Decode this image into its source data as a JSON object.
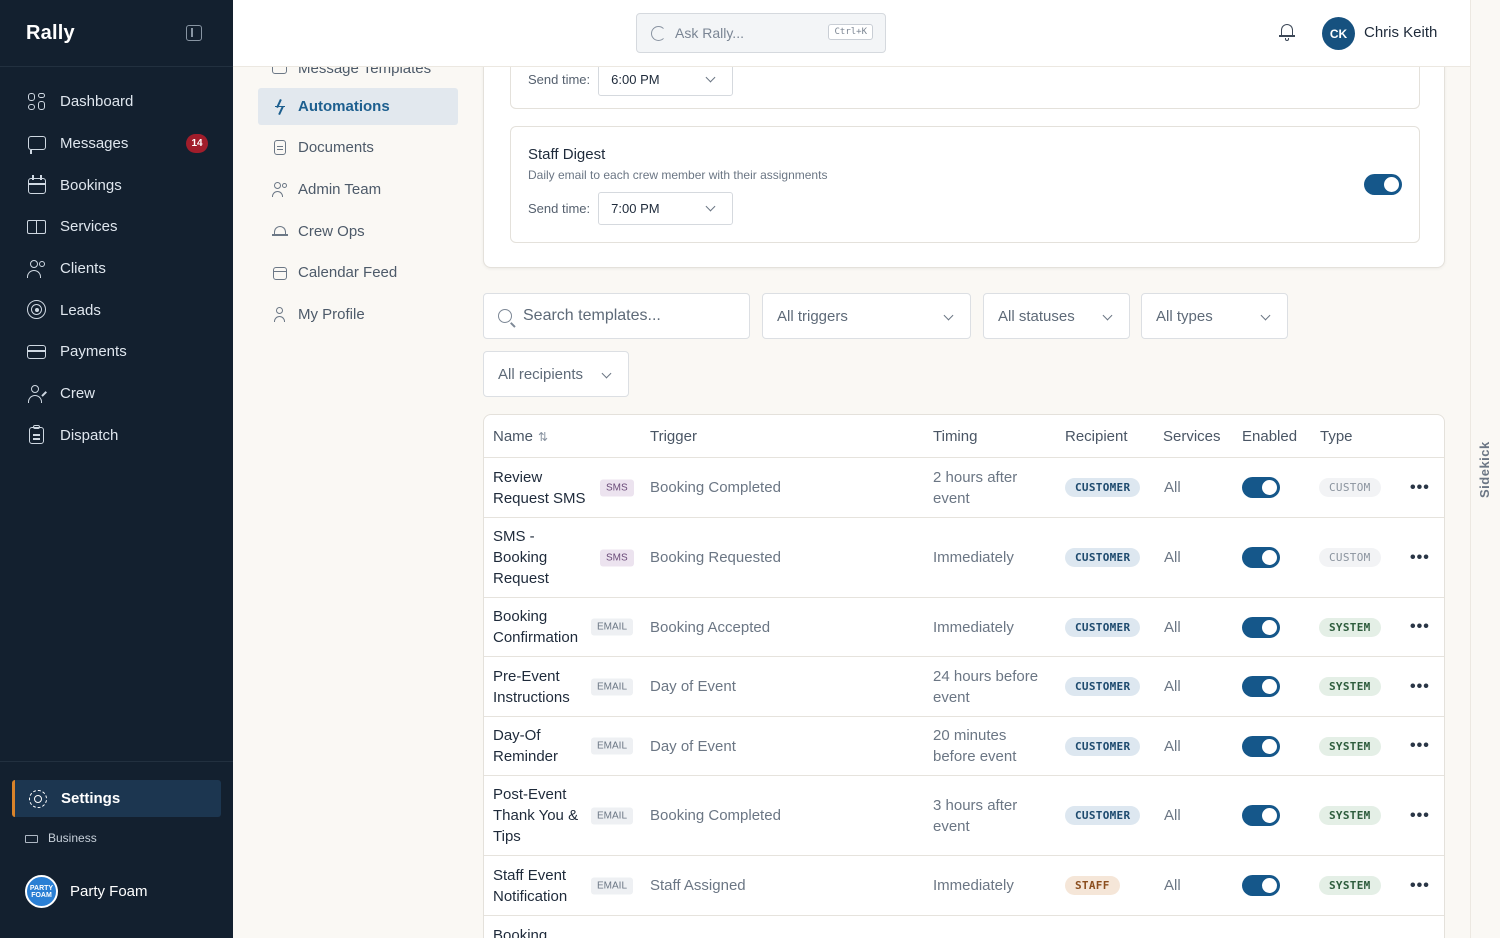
{
  "app": {
    "name": "Rally"
  },
  "search": {
    "placeholder": "Ask Rally...",
    "shortcut": "Ctrl+K"
  },
  "user": {
    "initials": "CK",
    "name": "Chris Keith"
  },
  "sidebar": {
    "items": [
      {
        "label": "Dashboard",
        "icon": "dashboard-icon"
      },
      {
        "label": "Messages",
        "icon": "message-icon",
        "badge": "14"
      },
      {
        "label": "Bookings",
        "icon": "calendar-icon"
      },
      {
        "label": "Services",
        "icon": "book-icon"
      },
      {
        "label": "Clients",
        "icon": "users-icon"
      },
      {
        "label": "Leads",
        "icon": "target-icon"
      },
      {
        "label": "Payments",
        "icon": "card-icon"
      },
      {
        "label": "Crew",
        "icon": "crew-icon"
      },
      {
        "label": "Dispatch",
        "icon": "clipboard-icon"
      }
    ],
    "settings_label": "Settings",
    "business_label": "Business",
    "org_name": "Party Foam",
    "org_logo_text": "PARTY FOAM"
  },
  "subnav": {
    "items": [
      {
        "label": "Message Templates"
      },
      {
        "label": "Automations",
        "active": true
      },
      {
        "label": "Documents"
      },
      {
        "label": "Admin Team"
      },
      {
        "label": "Crew Ops"
      },
      {
        "label": "Calendar Feed"
      },
      {
        "label": "My Profile"
      }
    ]
  },
  "digests": {
    "top_send_label": "Send time:",
    "top_send_value": "6:00 PM",
    "staff_title": "Staff Digest",
    "staff_desc": "Daily email to each crew member with their assignments",
    "staff_send_label": "Send time:",
    "staff_send_value": "7:00 PM"
  },
  "filters": {
    "search_placeholder": "Search templates...",
    "triggers": "All triggers",
    "statuses": "All statuses",
    "types": "All types",
    "recipients": "All recipients"
  },
  "table": {
    "headers": {
      "name": "Name",
      "trigger": "Trigger",
      "timing": "Timing",
      "recipient": "Recipient",
      "services": "Services",
      "enabled": "Enabled",
      "type": "Type"
    },
    "rows": [
      {
        "name": "Review Request SMS",
        "channel": "SMS",
        "trigger": "Booking Completed",
        "timing": "2 hours after event",
        "recipient": "CUSTOMER",
        "services": "All",
        "enabled": true,
        "type": "CUSTOM"
      },
      {
        "name": "SMS - Booking Request",
        "channel": "SMS",
        "trigger": "Booking Requested",
        "timing": "Immediately",
        "recipient": "CUSTOMER",
        "services": "All",
        "enabled": true,
        "type": "CUSTOM"
      },
      {
        "name": "Booking Confirmation",
        "channel": "EMAIL",
        "trigger": "Booking Accepted",
        "timing": "Immediately",
        "recipient": "CUSTOMER",
        "services": "All",
        "enabled": true,
        "type": "SYSTEM"
      },
      {
        "name": "Pre-Event Instructions",
        "channel": "EMAIL",
        "trigger": "Day of Event",
        "timing": "24 hours before event",
        "recipient": "CUSTOMER",
        "services": "All",
        "enabled": true,
        "type": "SYSTEM"
      },
      {
        "name": "Day-Of Reminder",
        "channel": "EMAIL",
        "trigger": "Day of Event",
        "timing": "20 minutes before event",
        "recipient": "CUSTOMER",
        "services": "All",
        "enabled": true,
        "type": "SYSTEM"
      },
      {
        "name": "Post-Event Thank You & Tips",
        "channel": "EMAIL",
        "trigger": "Booking Completed",
        "timing": "3 hours after event",
        "recipient": "CUSTOMER",
        "services": "All",
        "enabled": true,
        "type": "SYSTEM"
      },
      {
        "name": "Staff Event Notification",
        "channel": "EMAIL",
        "trigger": "Staff Assigned",
        "timing": "Immediately",
        "recipient": "STAFF",
        "services": "All",
        "enabled": true,
        "type": "SYSTEM"
      },
      {
        "name": "Booking",
        "channel": "",
        "trigger": "",
        "timing": "",
        "recipient": "",
        "services": "",
        "enabled": null,
        "type": ""
      }
    ]
  },
  "sidekick": {
    "label": "Sidekick"
  },
  "colors": {
    "sidebar_bg": "#13202f",
    "accent": "#15578a",
    "settings_marker": "#d9832a",
    "badge": "#a11d2b"
  }
}
